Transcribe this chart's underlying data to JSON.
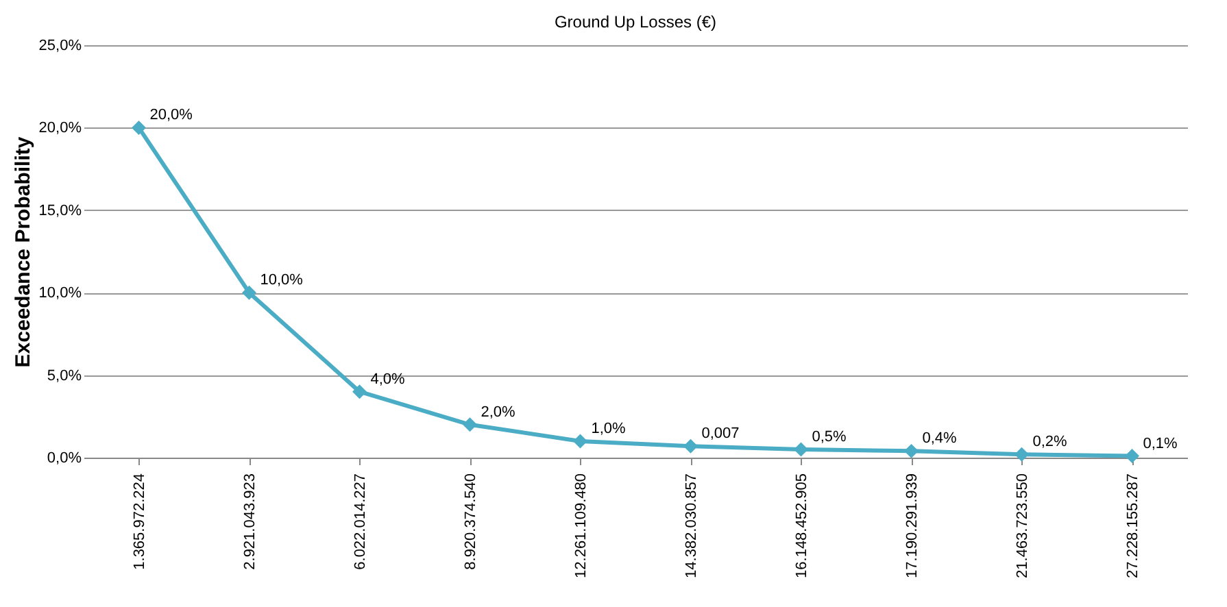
{
  "chart_data": {
    "type": "line",
    "title": "Ground Up Losses (€)",
    "ylabel": "Exceedance Probability",
    "categories": [
      "1.365.972.224",
      "2.921.043.923",
      "6.022.014.227",
      "8.920.374.540",
      "12.261.109.480",
      "14.382.030.857",
      "16.148.452.905",
      "17.190.291.939",
      "21.463.723.550",
      "27.228.155.287"
    ],
    "series": [
      {
        "color": "#4bacc6",
        "values": [
          20,
          10,
          4,
          2,
          1,
          0.7,
          0.5,
          0.4,
          0.2,
          0.1
        ],
        "value_labels": [
          "20,0%",
          "10,0%",
          "4,0%",
          "2,0%",
          "1,0%",
          null,
          "0,5%",
          "0,4%",
          "0,2%",
          "0,1%"
        ]
      }
    ],
    "ylim": [
      0,
      25
    ],
    "yticks": [
      {
        "value": 0,
        "label": "0,0%"
      },
      {
        "value": 5,
        "label": "5,0%"
      },
      {
        "value": 10,
        "label": "10,0%"
      },
      {
        "value": 15,
        "label": "15,0%"
      },
      {
        "value": 20,
        "label": "20,0%"
      },
      {
        "value": 25,
        "label": "25,0%"
      }
    ],
    "grid": "y",
    "marker": "diamond",
    "line_style": "solid",
    "legend": false,
    "annotations": [
      {
        "text": "0,007",
        "x": "14.382.030.857",
        "y": 0.7
      }
    ]
  }
}
